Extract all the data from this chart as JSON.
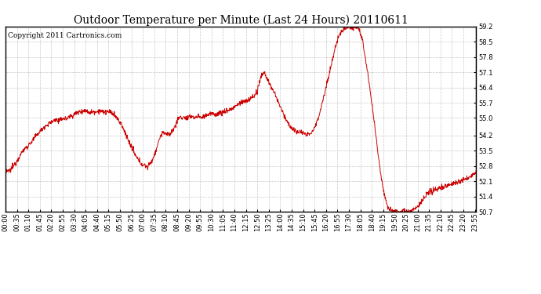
{
  "title": "Outdoor Temperature per Minute (Last 24 Hours) 20110611",
  "copyright_text": "Copyright 2011 Cartronics.com",
  "line_color": "#cc0000",
  "background_color": "#ffffff",
  "grid_color": "#bbbbbb",
  "ylim": [
    50.7,
    59.2
  ],
  "yticks": [
    50.7,
    51.4,
    52.1,
    52.8,
    53.5,
    54.2,
    55.0,
    55.7,
    56.4,
    57.1,
    57.8,
    58.5,
    59.2
  ],
  "xtick_labels": [
    "00:00",
    "00:35",
    "01:10",
    "01:45",
    "02:20",
    "02:55",
    "03:30",
    "04:05",
    "04:40",
    "05:15",
    "05:50",
    "06:25",
    "07:00",
    "07:35",
    "08:10",
    "08:45",
    "09:20",
    "09:55",
    "10:30",
    "11:05",
    "11:40",
    "12:15",
    "12:50",
    "13:25",
    "14:00",
    "14:35",
    "15:10",
    "15:45",
    "16:20",
    "16:55",
    "17:30",
    "18:05",
    "18:40",
    "19:15",
    "19:50",
    "20:25",
    "21:00",
    "21:35",
    "22:10",
    "22:45",
    "23:20",
    "23:55"
  ],
  "waypoints": [
    [
      0,
      52.5
    ],
    [
      15,
      52.6
    ],
    [
      30,
      52.9
    ],
    [
      45,
      53.3
    ],
    [
      60,
      53.6
    ],
    [
      80,
      53.9
    ],
    [
      100,
      54.3
    ],
    [
      120,
      54.6
    ],
    [
      130,
      54.7
    ],
    [
      140,
      54.8
    ],
    [
      155,
      54.95
    ],
    [
      160,
      54.85
    ],
    [
      170,
      54.9
    ],
    [
      175,
      55.0
    ],
    [
      185,
      54.95
    ],
    [
      195,
      55.05
    ],
    [
      200,
      55.1
    ],
    [
      210,
      55.15
    ],
    [
      220,
      55.25
    ],
    [
      230,
      55.3
    ],
    [
      240,
      55.35
    ],
    [
      250,
      55.3
    ],
    [
      260,
      55.25
    ],
    [
      270,
      55.3
    ],
    [
      280,
      55.3
    ],
    [
      290,
      55.35
    ],
    [
      300,
      55.25
    ],
    [
      310,
      55.3
    ],
    [
      320,
      55.25
    ],
    [
      330,
      55.2
    ],
    [
      340,
      55.0
    ],
    [
      355,
      54.7
    ],
    [
      360,
      54.5
    ],
    [
      370,
      54.2
    ],
    [
      380,
      53.8
    ],
    [
      390,
      53.5
    ],
    [
      400,
      53.2
    ],
    [
      410,
      53.0
    ],
    [
      420,
      52.85
    ],
    [
      430,
      52.8
    ],
    [
      435,
      52.75
    ],
    [
      440,
      52.85
    ],
    [
      450,
      53.1
    ],
    [
      460,
      53.5
    ],
    [
      470,
      54.0
    ],
    [
      475,
      54.2
    ],
    [
      480,
      54.3
    ],
    [
      485,
      54.35
    ],
    [
      490,
      54.3
    ],
    [
      495,
      54.2
    ],
    [
      500,
      54.25
    ],
    [
      505,
      54.3
    ],
    [
      510,
      54.4
    ],
    [
      515,
      54.5
    ],
    [
      520,
      54.7
    ],
    [
      525,
      54.85
    ],
    [
      530,
      55.0
    ],
    [
      535,
      55.05
    ],
    [
      540,
      55.0
    ],
    [
      545,
      55.05
    ],
    [
      550,
      55.0
    ],
    [
      555,
      54.95
    ],
    [
      560,
      55.0
    ],
    [
      565,
      55.05
    ],
    [
      570,
      55.1
    ],
    [
      575,
      55.05
    ],
    [
      580,
      55.0
    ],
    [
      585,
      55.05
    ],
    [
      590,
      55.1
    ],
    [
      595,
      55.05
    ],
    [
      600,
      55.0
    ],
    [
      610,
      55.1
    ],
    [
      620,
      55.15
    ],
    [
      630,
      55.2
    ],
    [
      640,
      55.15
    ],
    [
      650,
      55.2
    ],
    [
      660,
      55.25
    ],
    [
      670,
      55.3
    ],
    [
      680,
      55.35
    ],
    [
      690,
      55.4
    ],
    [
      700,
      55.5
    ],
    [
      710,
      55.6
    ],
    [
      720,
      55.7
    ],
    [
      730,
      55.75
    ],
    [
      740,
      55.8
    ],
    [
      750,
      55.9
    ],
    [
      760,
      56.0
    ],
    [
      770,
      56.2
    ],
    [
      775,
      56.5
    ],
    [
      780,
      56.8
    ],
    [
      785,
      57.0
    ],
    [
      790,
      57.1
    ],
    [
      795,
      57.0
    ],
    [
      800,
      56.8
    ],
    [
      810,
      56.5
    ],
    [
      820,
      56.2
    ],
    [
      830,
      55.9
    ],
    [
      840,
      55.5
    ],
    [
      850,
      55.2
    ],
    [
      860,
      54.9
    ],
    [
      870,
      54.6
    ],
    [
      880,
      54.5
    ],
    [
      885,
      54.4
    ],
    [
      890,
      54.3
    ],
    [
      895,
      54.35
    ],
    [
      900,
      54.4
    ],
    [
      905,
      54.35
    ],
    [
      910,
      54.3
    ],
    [
      915,
      54.25
    ],
    [
      920,
      54.2
    ],
    [
      925,
      54.25
    ],
    [
      930,
      54.3
    ],
    [
      935,
      54.35
    ],
    [
      940,
      54.4
    ],
    [
      950,
      54.7
    ],
    [
      960,
      55.2
    ],
    [
      970,
      55.8
    ],
    [
      980,
      56.4
    ],
    [
      990,
      57.0
    ],
    [
      1000,
      57.7
    ],
    [
      1010,
      58.3
    ],
    [
      1020,
      58.8
    ],
    [
      1030,
      59.0
    ],
    [
      1035,
      59.1
    ],
    [
      1040,
      59.15
    ],
    [
      1045,
      59.2
    ],
    [
      1050,
      59.2
    ],
    [
      1055,
      59.15
    ],
    [
      1060,
      59.1
    ],
    [
      1065,
      59.15
    ],
    [
      1070,
      59.2
    ],
    [
      1075,
      59.15
    ],
    [
      1080,
      59.1
    ],
    [
      1090,
      58.7
    ],
    [
      1100,
      57.8
    ],
    [
      1110,
      56.8
    ],
    [
      1120,
      55.7
    ],
    [
      1130,
      54.5
    ],
    [
      1140,
      53.3
    ],
    [
      1150,
      52.2
    ],
    [
      1160,
      51.4
    ],
    [
      1170,
      50.9
    ],
    [
      1180,
      50.75
    ],
    [
      1190,
      50.72
    ],
    [
      1200,
      50.7
    ],
    [
      1210,
      50.72
    ],
    [
      1215,
      50.75
    ],
    [
      1220,
      50.8
    ],
    [
      1225,
      50.75
    ],
    [
      1230,
      50.72
    ],
    [
      1240,
      50.75
    ],
    [
      1250,
      50.8
    ],
    [
      1255,
      50.85
    ],
    [
      1260,
      50.9
    ],
    [
      1265,
      51.0
    ],
    [
      1270,
      51.1
    ],
    [
      1275,
      51.2
    ],
    [
      1280,
      51.3
    ],
    [
      1285,
      51.4
    ],
    [
      1290,
      51.5
    ],
    [
      1295,
      51.55
    ],
    [
      1300,
      51.6
    ],
    [
      1305,
      51.65
    ],
    [
      1310,
      51.7
    ],
    [
      1320,
      51.75
    ],
    [
      1330,
      51.8
    ],
    [
      1340,
      51.85
    ],
    [
      1350,
      51.9
    ],
    [
      1360,
      51.95
    ],
    [
      1370,
      52.0
    ],
    [
      1380,
      52.05
    ],
    [
      1390,
      52.1
    ],
    [
      1400,
      52.15
    ],
    [
      1410,
      52.2
    ],
    [
      1420,
      52.3
    ],
    [
      1430,
      52.4
    ],
    [
      1439,
      52.5
    ]
  ],
  "title_fontsize": 10,
  "copyright_fontsize": 6.5,
  "tick_fontsize": 6,
  "figsize": [
    6.9,
    3.75
  ],
  "dpi": 100
}
